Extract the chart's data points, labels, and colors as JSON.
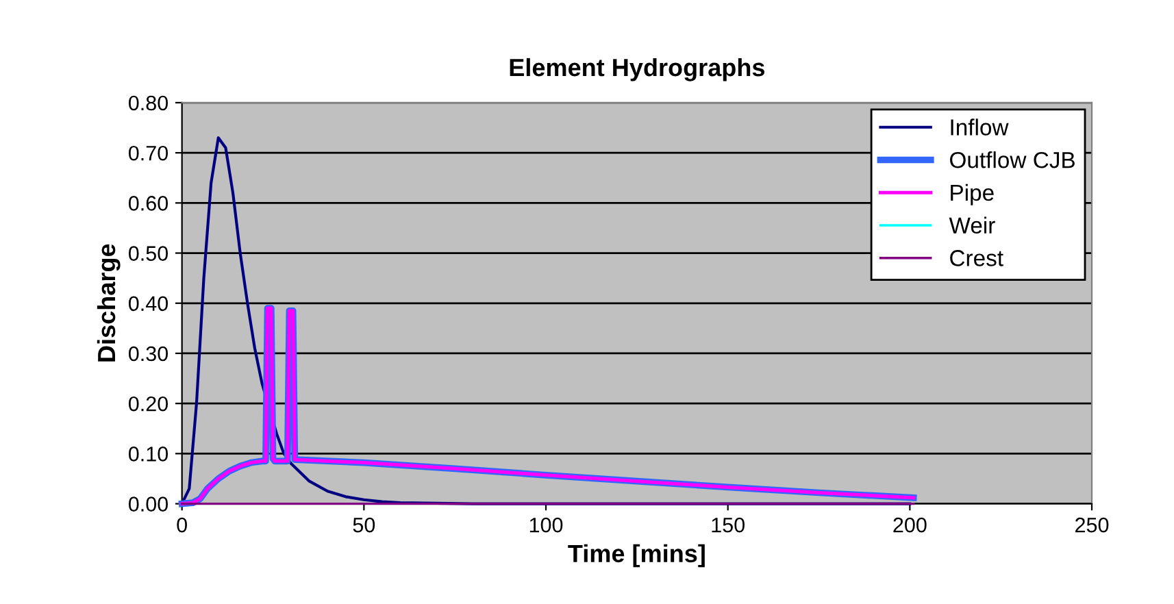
{
  "chart_data": {
    "type": "line",
    "title": "Element Hydrographs",
    "xlabel": "Time [mins]",
    "ylabel": "Discharge",
    "xlim": [
      0,
      250
    ],
    "xticks": [
      0,
      50,
      100,
      150,
      200,
      250
    ],
    "ylim": [
      0,
      0.8
    ],
    "yticks": [
      {
        "value": 0,
        "label": "0.00"
      },
      {
        "value": 0.1,
        "label": "0.10"
      },
      {
        "value": 0.2,
        "label": "0.20"
      },
      {
        "value": 0.3,
        "label": "0.30"
      },
      {
        "value": 0.4,
        "label": "0.40"
      },
      {
        "value": 0.5,
        "label": "0.50"
      },
      {
        "value": 0.6,
        "label": "0.60"
      },
      {
        "value": 0.7,
        "label": "0.70"
      },
      {
        "value": 0.8,
        "label": "0.80"
      }
    ],
    "grid": "y",
    "legend": "top right",
    "marker": "none",
    "line_style": "solid",
    "series": [
      {
        "name": "Inflow",
        "color": "#000080",
        "x": [
          0,
          2,
          4,
          6,
          8,
          10,
          12,
          14,
          16,
          18,
          20,
          22,
          26,
          28,
          30,
          35,
          40,
          45,
          50,
          55,
          60,
          70,
          80,
          100,
          150,
          200
        ],
        "values": [
          0,
          0.03,
          0.2,
          0.45,
          0.64,
          0.73,
          0.71,
          0.62,
          0.5,
          0.4,
          0.31,
          0.24,
          0.14,
          0.1,
          0.08,
          0.045,
          0.025,
          0.014,
          0.008,
          0.004,
          0.002,
          0.001,
          0,
          0,
          0,
          0
        ]
      },
      {
        "name": "Outflow CJB",
        "color": "#3366ff",
        "x": [
          0,
          3,
          5,
          7,
          10,
          13,
          16,
          19,
          22,
          23,
          23.5,
          24.5,
          25,
          25.5,
          29,
          29.5,
          30.5,
          31,
          50,
          75,
          100,
          125,
          150,
          175,
          201
        ],
        "values": [
          0,
          0.002,
          0.01,
          0.03,
          0.05,
          0.065,
          0.075,
          0.082,
          0.085,
          0.085,
          0.39,
          0.39,
          0.09,
          0.085,
          0.085,
          0.385,
          0.385,
          0.088,
          0.082,
          0.07,
          0.057,
          0.045,
          0.033,
          0.022,
          0.012
        ]
      },
      {
        "name": "Pipe",
        "color": "#ff00ff",
        "x": [
          0,
          3,
          5,
          7,
          10,
          13,
          16,
          19,
          22,
          23,
          23.5,
          24.5,
          25,
          25.5,
          29,
          29.5,
          30.5,
          31,
          50,
          75,
          100,
          125,
          150,
          175,
          201
        ],
        "values": [
          0,
          0.002,
          0.01,
          0.03,
          0.05,
          0.065,
          0.075,
          0.082,
          0.085,
          0.085,
          0.39,
          0.39,
          0.09,
          0.085,
          0.085,
          0.385,
          0.385,
          0.088,
          0.082,
          0.07,
          0.057,
          0.045,
          0.033,
          0.022,
          0.012
        ]
      },
      {
        "name": "Weir",
        "color": "#00ffff"
      },
      {
        "name": "Crest",
        "color": "#800080",
        "x": [
          0,
          100,
          201
        ],
        "values": [
          0,
          0,
          0
        ]
      }
    ]
  }
}
